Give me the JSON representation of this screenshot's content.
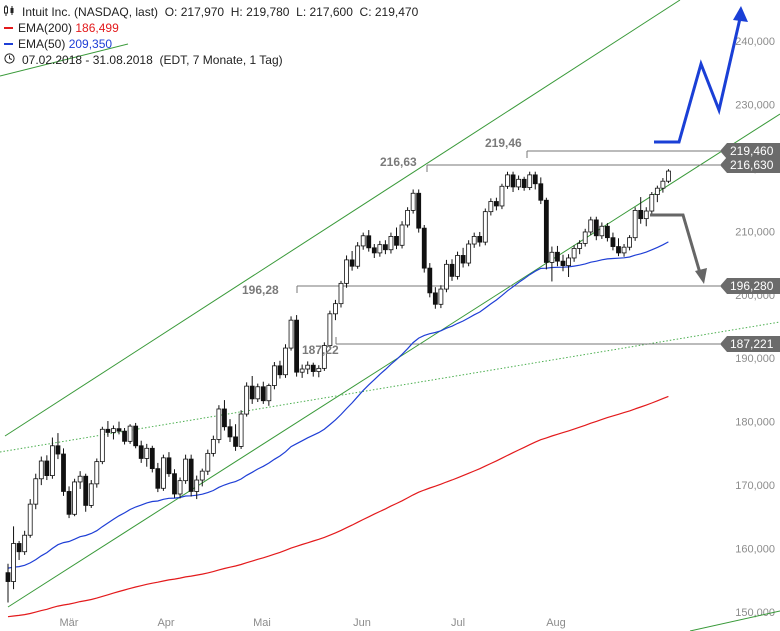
{
  "legend": {
    "symbol_title": "Intuit Inc. (NASDAQ, last)",
    "ohlc": "O: 217,970  H: 219,780  L: 217,600  C: 219,470",
    "ema200_label": "EMA(200)",
    "ema200_value": "186,499",
    "ema50_label": "EMA(50)",
    "ema50_value": "209,350",
    "period": "07.02.2018 - 31.08.2018",
    "period_detail": "(EDT, 7 Monate, 1 Tag)"
  },
  "colors": {
    "up": "#ffffff",
    "down": "#111111",
    "ema200": "#e31a1c",
    "ema50": "#1f3fd6",
    "channel": "#3a9a3a",
    "trend_dotted": "#4caf50",
    "arrow_up": "#1a3fd6",
    "arrow_down": "#666666",
    "level_box": "#6b6b6b"
  },
  "chart_data": {
    "type": "candlestick",
    "x_labels": [
      "Mär",
      "Apr",
      "Mai",
      "Jun",
      "Jul",
      "Aug"
    ],
    "y_ticks": [
      "240,000",
      "230,000",
      "220,000",
      "210,000",
      "200,000",
      "190,000",
      "180,000",
      "170,000",
      "160,000",
      "150,000"
    ],
    "y_range": [
      149,
      248
    ],
    "annotations": [
      "216,63",
      "219,46",
      "196,28",
      "187,22"
    ],
    "levels": [
      "219,460",
      "216,630",
      "196,280",
      "187,221"
    ],
    "candles": [
      [
        156.2,
        157.6,
        151.5,
        154.8
      ],
      [
        154.8,
        163.5,
        153.6,
        160.8
      ],
      [
        160.8,
        161.2,
        158.2,
        159.5
      ],
      [
        159.5,
        162.8,
        159.0,
        162.1
      ],
      [
        162.1,
        167.8,
        161.7,
        167.0
      ],
      [
        167.0,
        171.8,
        166.2,
        171.0
      ],
      [
        171.0,
        174.5,
        170.0,
        173.8
      ],
      [
        173.8,
        174.7,
        170.8,
        171.5
      ],
      [
        171.5,
        177.5,
        171.0,
        176.2
      ],
      [
        176.2,
        178.2,
        174.1,
        174.9
      ],
      [
        174.9,
        175.8,
        168.3,
        169.0
      ],
      [
        169.0,
        169.8,
        164.8,
        165.4
      ],
      [
        165.4,
        171.0,
        165.1,
        170.5
      ],
      [
        170.5,
        172.2,
        169.4,
        171.4
      ],
      [
        171.4,
        171.8,
        165.8,
        166.8
      ],
      [
        166.8,
        170.8,
        166.4,
        170.2
      ],
      [
        170.2,
        174.2,
        169.6,
        173.7
      ],
      [
        173.7,
        179.2,
        173.3,
        178.8
      ],
      [
        178.8,
        180.1,
        177.6,
        178.3
      ],
      [
        178.3,
        179.4,
        177.2,
        178.9
      ],
      [
        178.9,
        180.0,
        178.0,
        178.5
      ],
      [
        178.5,
        179.0,
        176.4,
        176.9
      ],
      [
        176.9,
        179.6,
        176.5,
        179.3
      ],
      [
        179.3,
        179.8,
        175.8,
        176.2
      ],
      [
        176.2,
        177.0,
        173.5,
        174.2
      ],
      [
        174.2,
        176.5,
        172.9,
        175.8
      ],
      [
        175.8,
        176.2,
        172.0,
        172.6
      ],
      [
        172.6,
        173.5,
        168.9,
        169.5
      ],
      [
        169.5,
        174.8,
        169.1,
        174.3
      ],
      [
        174.3,
        175.2,
        171.3,
        171.8
      ],
      [
        171.8,
        172.5,
        168.0,
        168.6
      ],
      [
        168.6,
        171.2,
        167.9,
        170.7
      ],
      [
        170.7,
        174.8,
        170.2,
        174.1
      ],
      [
        174.1,
        174.8,
        168.2,
        169.0
      ],
      [
        169.0,
        171.5,
        167.8,
        170.8
      ],
      [
        170.8,
        172.6,
        169.8,
        172.2
      ],
      [
        172.2,
        175.6,
        171.6,
        175.0
      ],
      [
        175.0,
        177.8,
        174.5,
        177.2
      ],
      [
        177.2,
        182.6,
        176.6,
        182.0
      ],
      [
        182.0,
        183.4,
        178.6,
        179.2
      ],
      [
        179.2,
        180.4,
        176.8,
        177.6
      ],
      [
        177.6,
        179.6,
        175.4,
        176.1
      ],
      [
        176.1,
        181.8,
        175.7,
        181.2
      ],
      [
        181.2,
        186.2,
        180.8,
        185.6
      ],
      [
        185.6,
        187.2,
        182.8,
        183.6
      ],
      [
        183.6,
        186.0,
        183.1,
        185.5
      ],
      [
        185.5,
        186.3,
        182.8,
        183.3
      ],
      [
        183.3,
        186.0,
        182.5,
        185.7
      ],
      [
        185.7,
        189.4,
        185.1,
        188.8
      ],
      [
        188.8,
        189.6,
        186.8,
        187.4
      ],
      [
        187.4,
        192.2,
        186.9,
        191.6
      ],
      [
        191.6,
        196.6,
        191.2,
        196.0
      ],
      [
        196.0,
        196.8,
        187.1,
        187.8
      ],
      [
        187.8,
        189.0,
        186.9,
        188.3
      ],
      [
        188.3,
        189.5,
        187.5,
        188.9
      ],
      [
        188.9,
        189.3,
        187.1,
        187.9
      ],
      [
        187.9,
        188.9,
        187.0,
        188.4
      ],
      [
        188.4,
        192.5,
        188.0,
        192.0
      ],
      [
        192.0,
        197.5,
        191.6,
        197.0
      ],
      [
        197.0,
        199.2,
        196.0,
        198.6
      ],
      [
        198.6,
        202.2,
        198.0,
        201.8
      ],
      [
        201.8,
        206.2,
        201.1,
        205.5
      ],
      [
        205.5,
        206.9,
        203.8,
        204.5
      ],
      [
        204.5,
        208.3,
        204.1,
        207.7
      ],
      [
        207.7,
        209.8,
        207.1,
        209.3
      ],
      [
        209.3,
        210.2,
        206.8,
        207.4
      ],
      [
        207.4,
        208.0,
        205.8,
        206.6
      ],
      [
        206.6,
        208.5,
        206.0,
        207.9
      ],
      [
        207.9,
        208.6,
        206.4,
        207.1
      ],
      [
        207.1,
        209.8,
        206.5,
        209.2
      ],
      [
        209.2,
        210.6,
        207.2,
        207.8
      ],
      [
        207.8,
        211.6,
        207.3,
        211.0
      ],
      [
        211.0,
        213.8,
        210.6,
        213.3
      ],
      [
        213.3,
        216.6,
        212.8,
        216.0
      ],
      [
        216.0,
        216.6,
        209.8,
        210.5
      ],
      [
        210.5,
        211.0,
        203.5,
        204.2
      ],
      [
        204.2,
        205.0,
        199.6,
        200.3
      ],
      [
        200.3,
        201.2,
        197.8,
        198.5
      ],
      [
        198.5,
        201.5,
        197.9,
        200.9
      ],
      [
        200.9,
        205.5,
        200.4,
        204.8
      ],
      [
        204.8,
        205.6,
        202.2,
        202.9
      ],
      [
        202.9,
        206.8,
        202.4,
        206.2
      ],
      [
        206.2,
        207.4,
        204.3,
        205.0
      ],
      [
        205.0,
        208.6,
        204.5,
        208.0
      ],
      [
        208.0,
        209.8,
        207.4,
        209.2
      ],
      [
        209.2,
        209.9,
        207.6,
        208.3
      ],
      [
        208.3,
        213.6,
        207.8,
        213.1
      ],
      [
        213.1,
        215.2,
        212.5,
        214.7
      ],
      [
        214.7,
        215.3,
        213.3,
        214.0
      ],
      [
        214.0,
        217.5,
        213.5,
        217.1
      ],
      [
        217.1,
        219.4,
        216.7,
        218.9
      ],
      [
        218.9,
        219.4,
        216.2,
        217.0
      ],
      [
        217.0,
        218.8,
        216.5,
        218.2
      ],
      [
        218.2,
        218.6,
        216.4,
        216.9
      ],
      [
        216.9,
        219.4,
        216.5,
        218.9
      ],
      [
        218.9,
        219.4,
        216.6,
        217.5
      ],
      [
        217.5,
        218.5,
        214.3,
        214.9
      ],
      [
        214.9,
        215.3,
        204.0,
        205.1
      ],
      [
        205.1,
        207.6,
        202.1,
        206.7
      ],
      [
        206.7,
        207.7,
        204.5,
        205.3
      ],
      [
        205.3,
        206.3,
        203.7,
        204.6
      ],
      [
        204.6,
        206.4,
        202.8,
        205.8
      ],
      [
        205.8,
        207.8,
        205.2,
        207.3
      ],
      [
        207.3,
        208.6,
        206.4,
        208.1
      ],
      [
        208.1,
        210.4,
        207.6,
        209.9
      ],
      [
        209.9,
        212.3,
        209.4,
        211.8
      ],
      [
        211.8,
        212.3,
        208.6,
        209.3
      ],
      [
        209.3,
        211.4,
        208.8,
        210.8
      ],
      [
        210.8,
        211.3,
        208.4,
        209.0
      ],
      [
        209.0,
        209.8,
        207.0,
        207.6
      ],
      [
        207.6,
        208.9,
        206.1,
        206.6
      ],
      [
        206.6,
        208.0,
        206.0,
        207.5
      ],
      [
        207.5,
        209.4,
        207.0,
        209.0
      ],
      [
        209.0,
        213.8,
        208.5,
        213.3
      ],
      [
        213.3,
        215.4,
        211.2,
        212.0
      ],
      [
        212.0,
        213.8,
        210.8,
        213.2
      ],
      [
        213.2,
        216.2,
        212.6,
        215.8
      ],
      [
        215.8,
        217.2,
        214.6,
        216.8
      ],
      [
        216.8,
        218.4,
        216.1,
        217.9
      ],
      [
        217.9,
        219.8,
        217.6,
        219.5
      ]
    ]
  }
}
